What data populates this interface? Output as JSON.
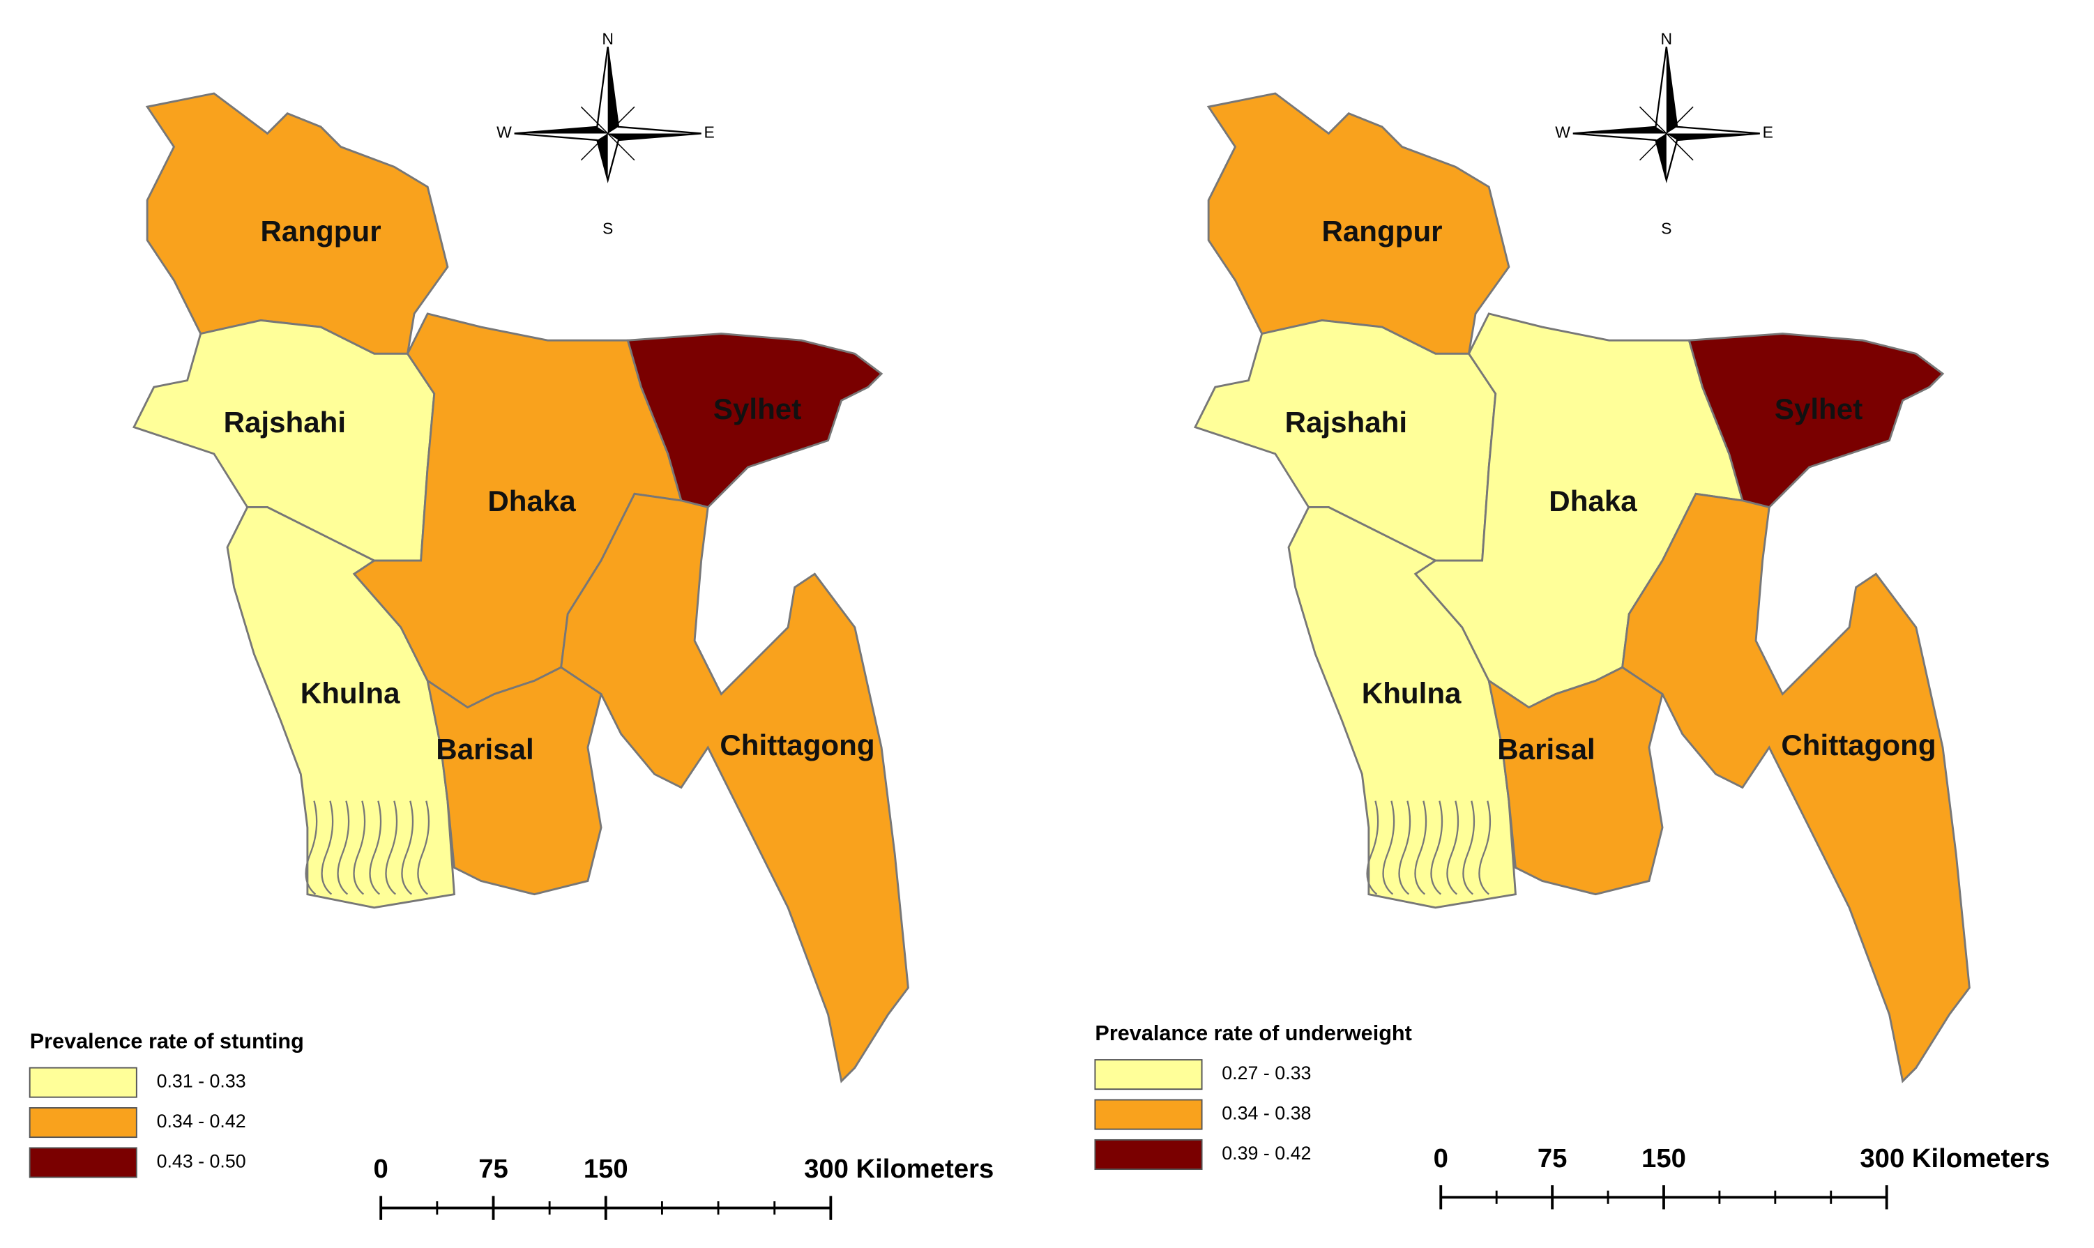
{
  "maps": [
    {
      "regions": [
        {
          "name": "Rangpur",
          "class": 1
        },
        {
          "name": "Rajshahi",
          "class": 0
        },
        {
          "name": "Khulna",
          "class": 0
        },
        {
          "name": "Dhaka",
          "class": 1
        },
        {
          "name": "Sylhet",
          "class": 2
        },
        {
          "name": "Chittagong",
          "class": 1
        },
        {
          "name": "Barisal",
          "class": 1
        }
      ],
      "legend": {
        "title": "Prevalence rate of stunting",
        "items": [
          "0.31 - 0.33",
          "0.34 - 0.42",
          "0.43 - 0.50"
        ],
        "colors": [
          "#ffff99",
          "#f9a21d",
          "#7a0000"
        ]
      },
      "scale": {
        "ticks": [
          0,
          75,
          150,
          {
            "value": 300,
            "label": "300 Kilometers"
          }
        ]
      },
      "compass": [
        "N",
        "E",
        "S",
        "W"
      ]
    },
    {
      "regions": [
        {
          "name": "Rangpur",
          "class": 1
        },
        {
          "name": "Rajshahi",
          "class": 0
        },
        {
          "name": "Khulna",
          "class": 0
        },
        {
          "name": "Dhaka",
          "class": 0
        },
        {
          "name": "Sylhet",
          "class": 2
        },
        {
          "name": "Chittagong",
          "class": 1
        },
        {
          "name": "Barisal",
          "class": 1
        }
      ],
      "legend": {
        "title": "Prevalance rate of underweight",
        "items": [
          "0.27 - 0.33",
          "0.34 - 0.38",
          "0.39 - 0.42"
        ],
        "colors": [
          "#ffff99",
          "#f9a21d",
          "#7a0000"
        ]
      },
      "scale": {
        "ticks": [
          0,
          75,
          150,
          {
            "value": 300,
            "label": "300 Kilometers"
          }
        ]
      },
      "compass": [
        "N",
        "E",
        "S",
        "W"
      ]
    }
  ]
}
